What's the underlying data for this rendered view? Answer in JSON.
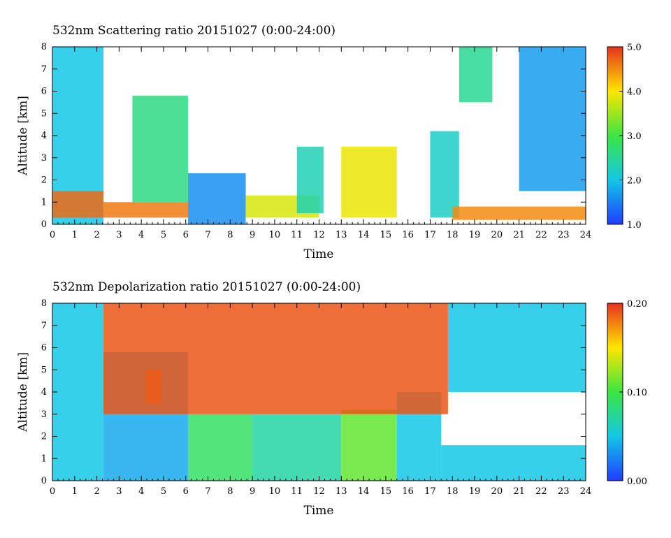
{
  "chart_data": [
    {
      "type": "heatmap",
      "title": "532nm Scattering ratio  20151027 (0:00-24:00)",
      "xlabel": "Time",
      "ylabel": "Altitude [km]",
      "xlim": [
        0,
        24
      ],
      "ylim": [
        0,
        8
      ],
      "x_ticks": [
        "0",
        "1",
        "2",
        "3",
        "4",
        "5",
        "6",
        "7",
        "8",
        "9",
        "10",
        "11",
        "12",
        "13",
        "14",
        "15",
        "16",
        "17",
        "18",
        "19",
        "20",
        "21",
        "22",
        "23",
        "24"
      ],
      "y_ticks": [
        "0",
        "1",
        "2",
        "3",
        "4",
        "5",
        "6",
        "7",
        "8"
      ],
      "colorbar": {
        "range": [
          1.0,
          5.0
        ],
        "ticks": [
          "1.0",
          "2.0",
          "3.0",
          "4.0",
          "5.0"
        ],
        "colors": [
          "#1e3cff",
          "#13c8e6",
          "#3ce640",
          "#ffe600",
          "#e6321e"
        ]
      },
      "description_free": true,
      "regions": [
        {
          "x": [
            0,
            2.3
          ],
          "y": [
            0,
            8
          ],
          "value": 2.0
        },
        {
          "x": [
            0,
            2.3
          ],
          "y": [
            0.3,
            1.5
          ],
          "value": 4.7
        },
        {
          "x": [
            2.3,
            6.1
          ],
          "y": [
            0.3,
            1.0
          ],
          "value": 4.6
        },
        {
          "x": [
            3.6,
            6.1
          ],
          "y": [
            1.0,
            5.8
          ],
          "value": 2.6
        },
        {
          "x": [
            6.1,
            8.7
          ],
          "y": [
            0,
            2.3
          ],
          "value": 1.6
        },
        {
          "x": [
            8.7,
            12.0
          ],
          "y": [
            0.3,
            1.3
          ],
          "value": 3.8
        },
        {
          "x": [
            11.0,
            12.2
          ],
          "y": [
            0.5,
            3.5
          ],
          "value": 2.3
        },
        {
          "x": [
            13.0,
            15.5
          ],
          "y": [
            0.3,
            3.5
          ],
          "value": 3.9
        },
        {
          "x": [
            17.0,
            18.3
          ],
          "y": [
            0.3,
            4.2
          ],
          "value": 2.2
        },
        {
          "x": [
            18.0,
            24.0
          ],
          "y": [
            0.2,
            0.8
          ],
          "value": 4.5
        },
        {
          "x": [
            18.3,
            19.8
          ],
          "y": [
            5.5,
            8.0
          ],
          "value": 2.5
        },
        {
          "x": [
            21.0,
            24.0
          ],
          "y": [
            1.5,
            8.0
          ],
          "value": 1.7
        }
      ]
    },
    {
      "type": "heatmap",
      "title": "532nm Depolarization ratio  20151027 (0:00-24:00)",
      "xlabel": "Time",
      "ylabel": "Altitude [km]",
      "xlim": [
        0,
        24
      ],
      "ylim": [
        0,
        8
      ],
      "x_ticks": [
        "0",
        "1",
        "2",
        "3",
        "4",
        "5",
        "6",
        "7",
        "8",
        "9",
        "10",
        "11",
        "12",
        "13",
        "14",
        "15",
        "16",
        "17",
        "18",
        "19",
        "20",
        "21",
        "22",
        "23",
        "24"
      ],
      "y_ticks": [
        "0",
        "1",
        "2",
        "3",
        "4",
        "5",
        "6",
        "7",
        "8"
      ],
      "colorbar": {
        "range": [
          0.0,
          0.2
        ],
        "ticks": [
          "0.00",
          "0.10",
          "0.20"
        ],
        "colors": [
          "#1e3cff",
          "#13c8e6",
          "#3ce640",
          "#ffe600",
          "#e6321e"
        ]
      },
      "regions": [
        {
          "x": [
            0,
            2.3
          ],
          "y": [
            0,
            8
          ],
          "value": 0.05
        },
        {
          "x": [
            2.3,
            6.1
          ],
          "y": [
            0,
            5.8
          ],
          "value": 0.04
        },
        {
          "x": [
            4.2,
            4.9
          ],
          "y": [
            3.5,
            5.0
          ],
          "value": 0.18
        },
        {
          "x": [
            6.1,
            9.0
          ],
          "y": [
            0,
            3.0
          ],
          "value": 0.09
        },
        {
          "x": [
            9.0,
            13.0
          ],
          "y": [
            0,
            3.0
          ],
          "value": 0.07
        },
        {
          "x": [
            13.0,
            15.5
          ],
          "y": [
            0,
            3.2
          ],
          "value": 0.11
        },
        {
          "x": [
            15.5,
            17.5
          ],
          "y": [
            0,
            4.0
          ],
          "value": 0.05
        },
        {
          "x": [
            17.5,
            24.0
          ],
          "y": [
            0,
            1.6
          ],
          "value": 0.05
        },
        {
          "x": [
            17.8,
            24.0
          ],
          "y": [
            4.0,
            8.0
          ],
          "value": 0.05
        },
        {
          "x": [
            2.3,
            17.8
          ],
          "y": [
            3.0,
            8.0
          ],
          "value": 0.19
        }
      ]
    }
  ]
}
